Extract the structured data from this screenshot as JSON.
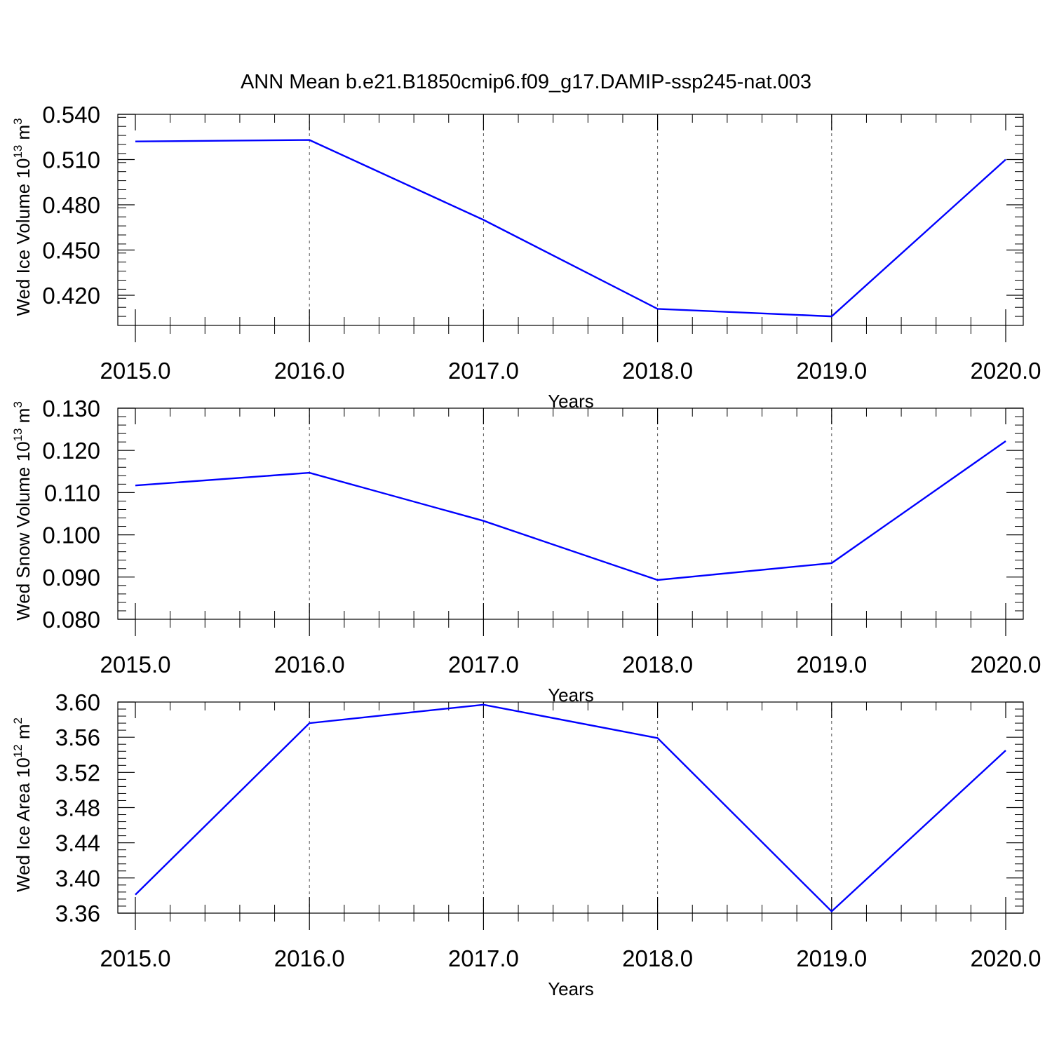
{
  "figure": {
    "title": "ANN Mean b.e21.B1850cmip6.f09_g17.DAMIP-ssp245-nat.003",
    "line_color": "#0000ff",
    "grid": "dashed vertical lines at major x ticks"
  },
  "chart_data": [
    {
      "type": "line",
      "title": "",
      "xlabel": "Years",
      "ylabel_parts": [
        "Wed Ice Volume 10",
        "13",
        " m",
        "3"
      ],
      "x_ticks": [
        2015.0,
        2016.0,
        2017.0,
        2018.0,
        2019.0,
        2020.0
      ],
      "x_tick_labels": [
        "2015.0",
        "2016.0",
        "2017.0",
        "2018.0",
        "2019.0",
        "2020.0"
      ],
      "y_ticks": [
        0.42,
        0.45,
        0.48,
        0.51,
        0.54
      ],
      "y_tick_labels": [
        "0.420",
        "0.450",
        "0.480",
        "0.510",
        "0.540"
      ],
      "xlim": [
        2015.0,
        2020.1
      ],
      "ylim": [
        0.4,
        0.54
      ],
      "y_minor_step": 0.006,
      "x": [
        2015,
        2016,
        2017,
        2018,
        2019,
        2020
      ],
      "series": [
        {
          "values": [
            0.522,
            0.523,
            0.47,
            0.411,
            0.406,
            0.51
          ]
        }
      ]
    },
    {
      "type": "line",
      "title": "",
      "xlabel": "Years",
      "ylabel_parts": [
        "Wed Snow Volume 10",
        "13",
        " m",
        "3"
      ],
      "x_ticks": [
        2015.0,
        2016.0,
        2017.0,
        2018.0,
        2019.0,
        2020.0
      ],
      "x_tick_labels": [
        "2015.0",
        "2016.0",
        "2017.0",
        "2018.0",
        "2019.0",
        "2020.0"
      ],
      "y_ticks": [
        0.08,
        0.09,
        0.1,
        0.11,
        0.12,
        0.13
      ],
      "y_tick_labels": [
        "0.080",
        "0.090",
        "0.100",
        "0.110",
        "0.120",
        "0.130"
      ],
      "xlim": [
        2015.0,
        2020.1
      ],
      "ylim": [
        0.08,
        0.13
      ],
      "y_minor_step": 0.002,
      "x": [
        2015,
        2016,
        2017,
        2018,
        2019,
        2020
      ],
      "series": [
        {
          "values": [
            0.1117,
            0.1147,
            0.1033,
            0.0893,
            0.0933,
            0.1222
          ]
        }
      ]
    },
    {
      "type": "line",
      "title": "",
      "xlabel": "Years",
      "ylabel_parts": [
        "Wed Ice Area 10",
        "12",
        " m",
        "2"
      ],
      "x_ticks": [
        2015.0,
        2016.0,
        2017.0,
        2018.0,
        2019.0,
        2020.0
      ],
      "x_tick_labels": [
        "2015.0",
        "2016.0",
        "2017.0",
        "2018.0",
        "2019.0",
        "2020.0"
      ],
      "y_ticks": [
        3.36,
        3.4,
        3.44,
        3.48,
        3.52,
        3.56,
        3.6
      ],
      "y_tick_labels": [
        "3.36",
        "3.40",
        "3.44",
        "3.48",
        "3.52",
        "3.56",
        "3.60"
      ],
      "xlim": [
        2015.0,
        2020.1
      ],
      "ylim": [
        3.36,
        3.6
      ],
      "y_minor_step": 0.008,
      "x": [
        2015,
        2016,
        2017,
        2018,
        2019,
        2020
      ],
      "series": [
        {
          "values": [
            3.381,
            3.576,
            3.597,
            3.559,
            3.362,
            3.545
          ]
        }
      ]
    }
  ]
}
